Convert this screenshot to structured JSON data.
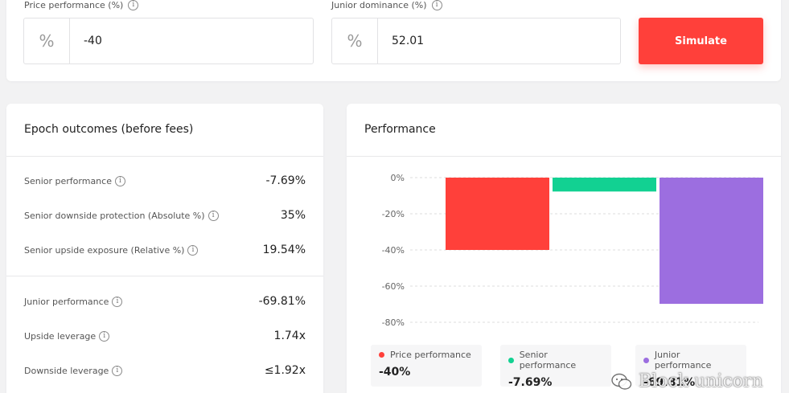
{
  "inputs": {
    "price": {
      "label": "Price performance (%)",
      "prefix": "%",
      "value": "-40"
    },
    "junior": {
      "label": "Junior dominance (%)",
      "prefix": "%",
      "value": "52.01"
    },
    "simulate_label": "Simulate"
  },
  "outcomes": {
    "title": "Epoch outcomes (before fees)",
    "senior_rows": [
      {
        "label": "Senior performance",
        "value": "-7.69%"
      },
      {
        "label": "Senior downside protection (Absolute %)",
        "value": "35%"
      },
      {
        "label": "Senior upside exposure (Relative %)",
        "value": "19.54%"
      }
    ],
    "junior_rows": [
      {
        "label": "Junior performance",
        "value": "-69.81%"
      },
      {
        "label": "Upside leverage",
        "value": "1.74x"
      },
      {
        "label": "Downside leverage",
        "value": "≤1.92x"
      }
    ]
  },
  "performance": {
    "title": "Performance",
    "legend": [
      {
        "label": "Price performance",
        "value": "-40%",
        "color": "#ff403a"
      },
      {
        "label": "Senior performance",
        "value": "-7.69%",
        "color": "#12d192"
      },
      {
        "label": "Junior performance",
        "value": "-69.81%",
        "color": "#9c6ee0"
      }
    ]
  },
  "chart_data": {
    "type": "bar",
    "categories": [
      "Price performance",
      "Senior performance",
      "Junior performance"
    ],
    "values": [
      -40,
      -7.69,
      -69.81
    ],
    "colors": [
      "#ff403a",
      "#12d192",
      "#9c6ee0"
    ],
    "ylim": [
      -80,
      0
    ],
    "yticks": [
      0,
      -20,
      -40,
      -60,
      -80
    ],
    "ytick_labels": [
      "0%",
      "-20%",
      "-40%",
      "-60%",
      "-80%"
    ],
    "grid": true,
    "legend_placement": "bottom"
  },
  "watermark": {
    "text": "Block unicorn"
  }
}
